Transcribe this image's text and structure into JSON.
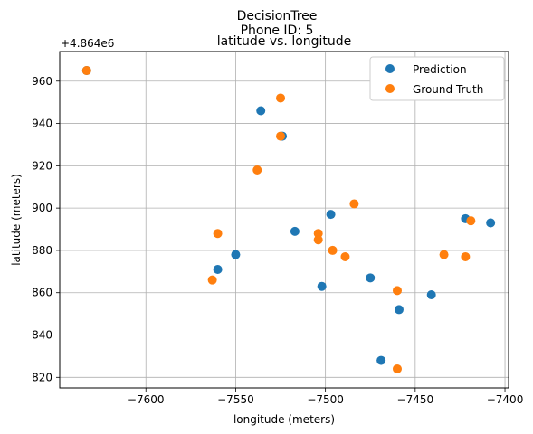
{
  "chart_data": {
    "type": "scatter",
    "title_lines": [
      "DecisionTree",
      "Phone ID: 5",
      "latitude vs. longitude"
    ],
    "xlabel": "longitude (meters)",
    "ylabel": "latitude (meters)",
    "y_offset_label": "+4.864e6",
    "xlim": [
      -7648,
      -7398
    ],
    "ylim": [
      815,
      974
    ],
    "xticks": [
      -7600,
      -7550,
      -7500,
      -7450,
      -7400
    ],
    "xtick_labels": [
      "−7600",
      "−7550",
      "−7500",
      "−7450",
      "−7400"
    ],
    "yticks": [
      820,
      840,
      860,
      880,
      900,
      920,
      940,
      960
    ],
    "ytick_labels": [
      "820",
      "840",
      "860",
      "880",
      "900",
      "920",
      "940",
      "960"
    ],
    "grid": true,
    "legend_position": "top-right",
    "series": [
      {
        "name": "Prediction",
        "color": "#1f77b4",
        "points": [
          [
            -7633,
            965
          ],
          [
            -7536,
            946
          ],
          [
            -7524,
            934
          ],
          [
            -7517,
            889
          ],
          [
            -7550,
            878
          ],
          [
            -7560,
            871
          ],
          [
            -7502,
            863
          ],
          [
            -7497,
            897
          ],
          [
            -7475,
            867
          ],
          [
            -7469,
            828
          ],
          [
            -7459,
            852
          ],
          [
            -7441,
            859
          ],
          [
            -7422,
            895
          ],
          [
            -7408,
            893
          ]
        ]
      },
      {
        "name": "Ground Truth",
        "color": "#ff7f0e",
        "points": [
          [
            -7633,
            965
          ],
          [
            -7525,
            952
          ],
          [
            -7525,
            934
          ],
          [
            -7538,
            918
          ],
          [
            -7560,
            888
          ],
          [
            -7563,
            866
          ],
          [
            -7504,
            888
          ],
          [
            -7504,
            885
          ],
          [
            -7496,
            880
          ],
          [
            -7489,
            877
          ],
          [
            -7484,
            902
          ],
          [
            -7460,
            861
          ],
          [
            -7460,
            824
          ],
          [
            -7434,
            878
          ],
          [
            -7422,
            877
          ],
          [
            -7419,
            894
          ]
        ]
      }
    ]
  }
}
